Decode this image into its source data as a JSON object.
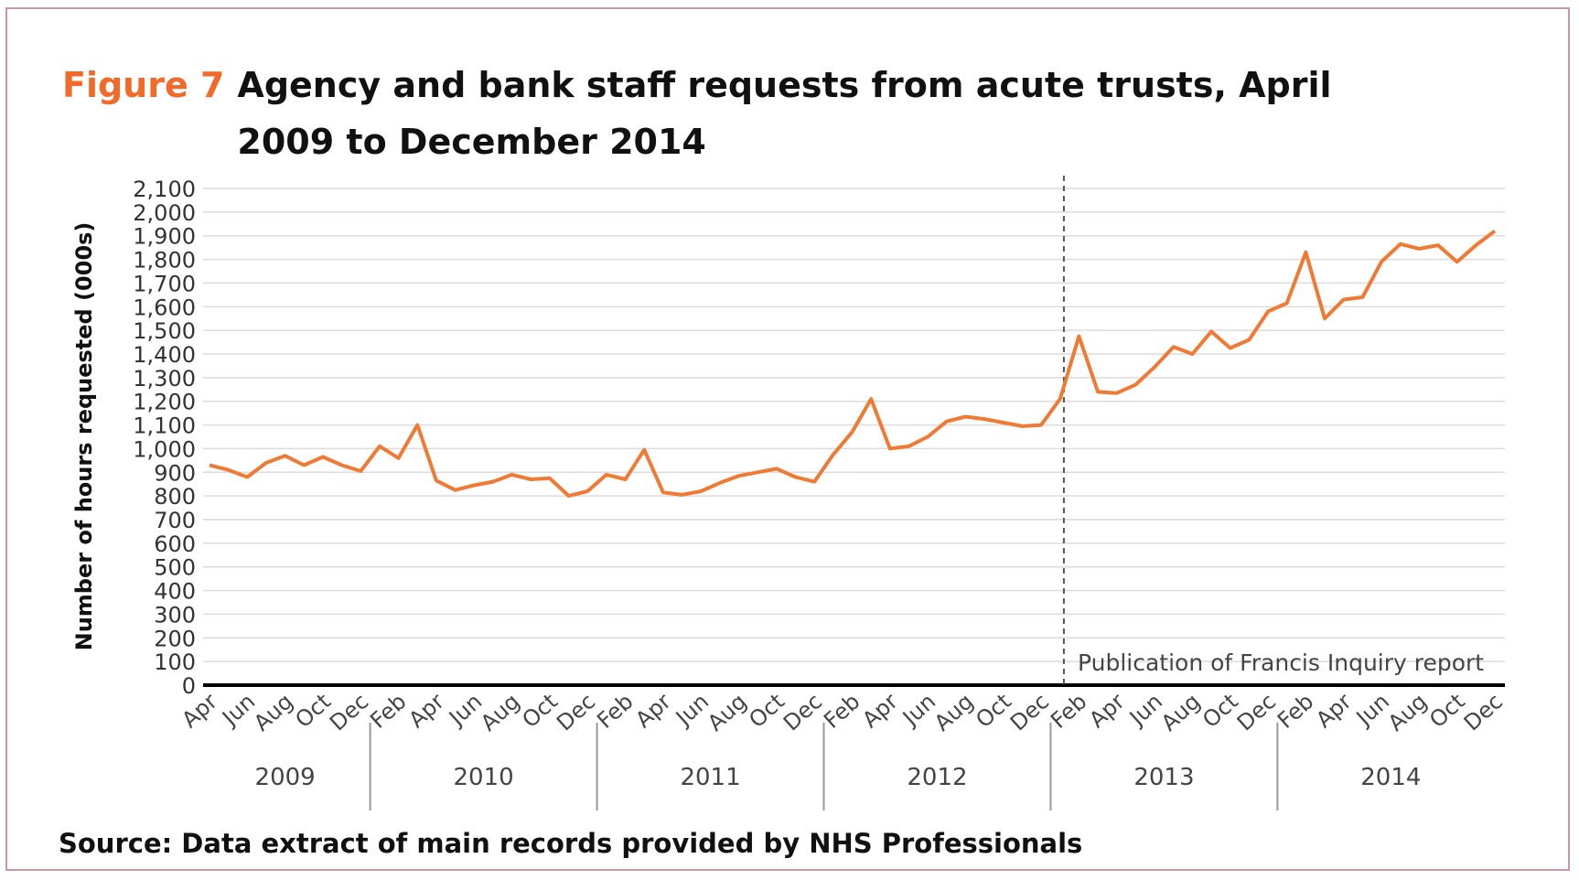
{
  "chart_data": {
    "type": "line",
    "figure_label": "Figure 7",
    "title": "Agency and bank staff requests from acute trusts, April 2009 to December 2014",
    "y_label": "Number of hours requested (000s)",
    "annotation": "Publication of Francis Inquiry report",
    "source": "Source: Data extract of main records provided by NHS Professionals",
    "categories": [
      "Apr",
      null,
      "Jun",
      null,
      "Aug",
      null,
      "Oct",
      null,
      "Dec",
      null,
      "Feb",
      null,
      "Apr",
      null,
      "Jun",
      null,
      "Aug",
      null,
      "Oct",
      null,
      "Dec",
      null,
      "Feb",
      null,
      "Apr",
      null,
      "Jun",
      null,
      "Aug",
      null,
      "Oct",
      null,
      "Dec",
      null,
      "Feb",
      null,
      "Apr",
      null,
      "Jun",
      null,
      "Aug",
      null,
      "Oct",
      null,
      "Dec",
      null,
      "Feb",
      null,
      "Apr",
      null,
      "Jun",
      null,
      "Aug",
      null,
      "Oct",
      null,
      "Dec",
      null,
      "Feb",
      null,
      "Apr",
      null,
      "Jun",
      null,
      "Aug",
      null,
      "Oct",
      null,
      "Dec"
    ],
    "years": [
      "2009",
      "2010",
      "2011",
      "2012",
      "2013",
      "2014"
    ],
    "series": [
      {
        "name": "Hours requested",
        "color": "#f07a34",
        "values": [
          930,
          910,
          880,
          940,
          970,
          930,
          965,
          930,
          905,
          1010,
          960,
          1100,
          865,
          825,
          845,
          860,
          890,
          870,
          875,
          800,
          820,
          890,
          870,
          995,
          815,
          805,
          820,
          855,
          885,
          900,
          915,
          880,
          860,
          975,
          1070,
          1210,
          1000,
          1010,
          1050,
          1115,
          1135,
          1125,
          1110,
          1095,
          1100,
          1210,
          1475,
          1240,
          1235,
          1270,
          1345,
          1430,
          1400,
          1495,
          1425,
          1460,
          1580,
          1615,
          1830,
          1550,
          1630,
          1640,
          1790,
          1865,
          1845,
          1860,
          1790,
          1860,
          1920
        ]
      }
    ],
    "ylim": [
      0,
      2100
    ],
    "yticks": [
      0,
      100,
      200,
      300,
      400,
      500,
      600,
      700,
      800,
      900,
      {
        "value": 1000,
        "label": "1,000"
      },
      {
        "value": 1100,
        "label": "1,100"
      },
      {
        "value": 1200,
        "label": "1,200"
      },
      {
        "value": 1300,
        "label": "1,300"
      },
      {
        "value": 1400,
        "label": "1,400"
      },
      {
        "value": 1500,
        "label": "1,500"
      },
      {
        "value": 1600,
        "label": "1,600"
      },
      {
        "value": 1700,
        "label": "1,700"
      },
      {
        "value": 1800,
        "label": "1,800"
      },
      {
        "value": 1900,
        "label": "1,900"
      },
      {
        "value": 2000,
        "label": "2,000"
      },
      {
        "value": 2100,
        "label": "2,100"
      }
    ],
    "grid": true
  }
}
